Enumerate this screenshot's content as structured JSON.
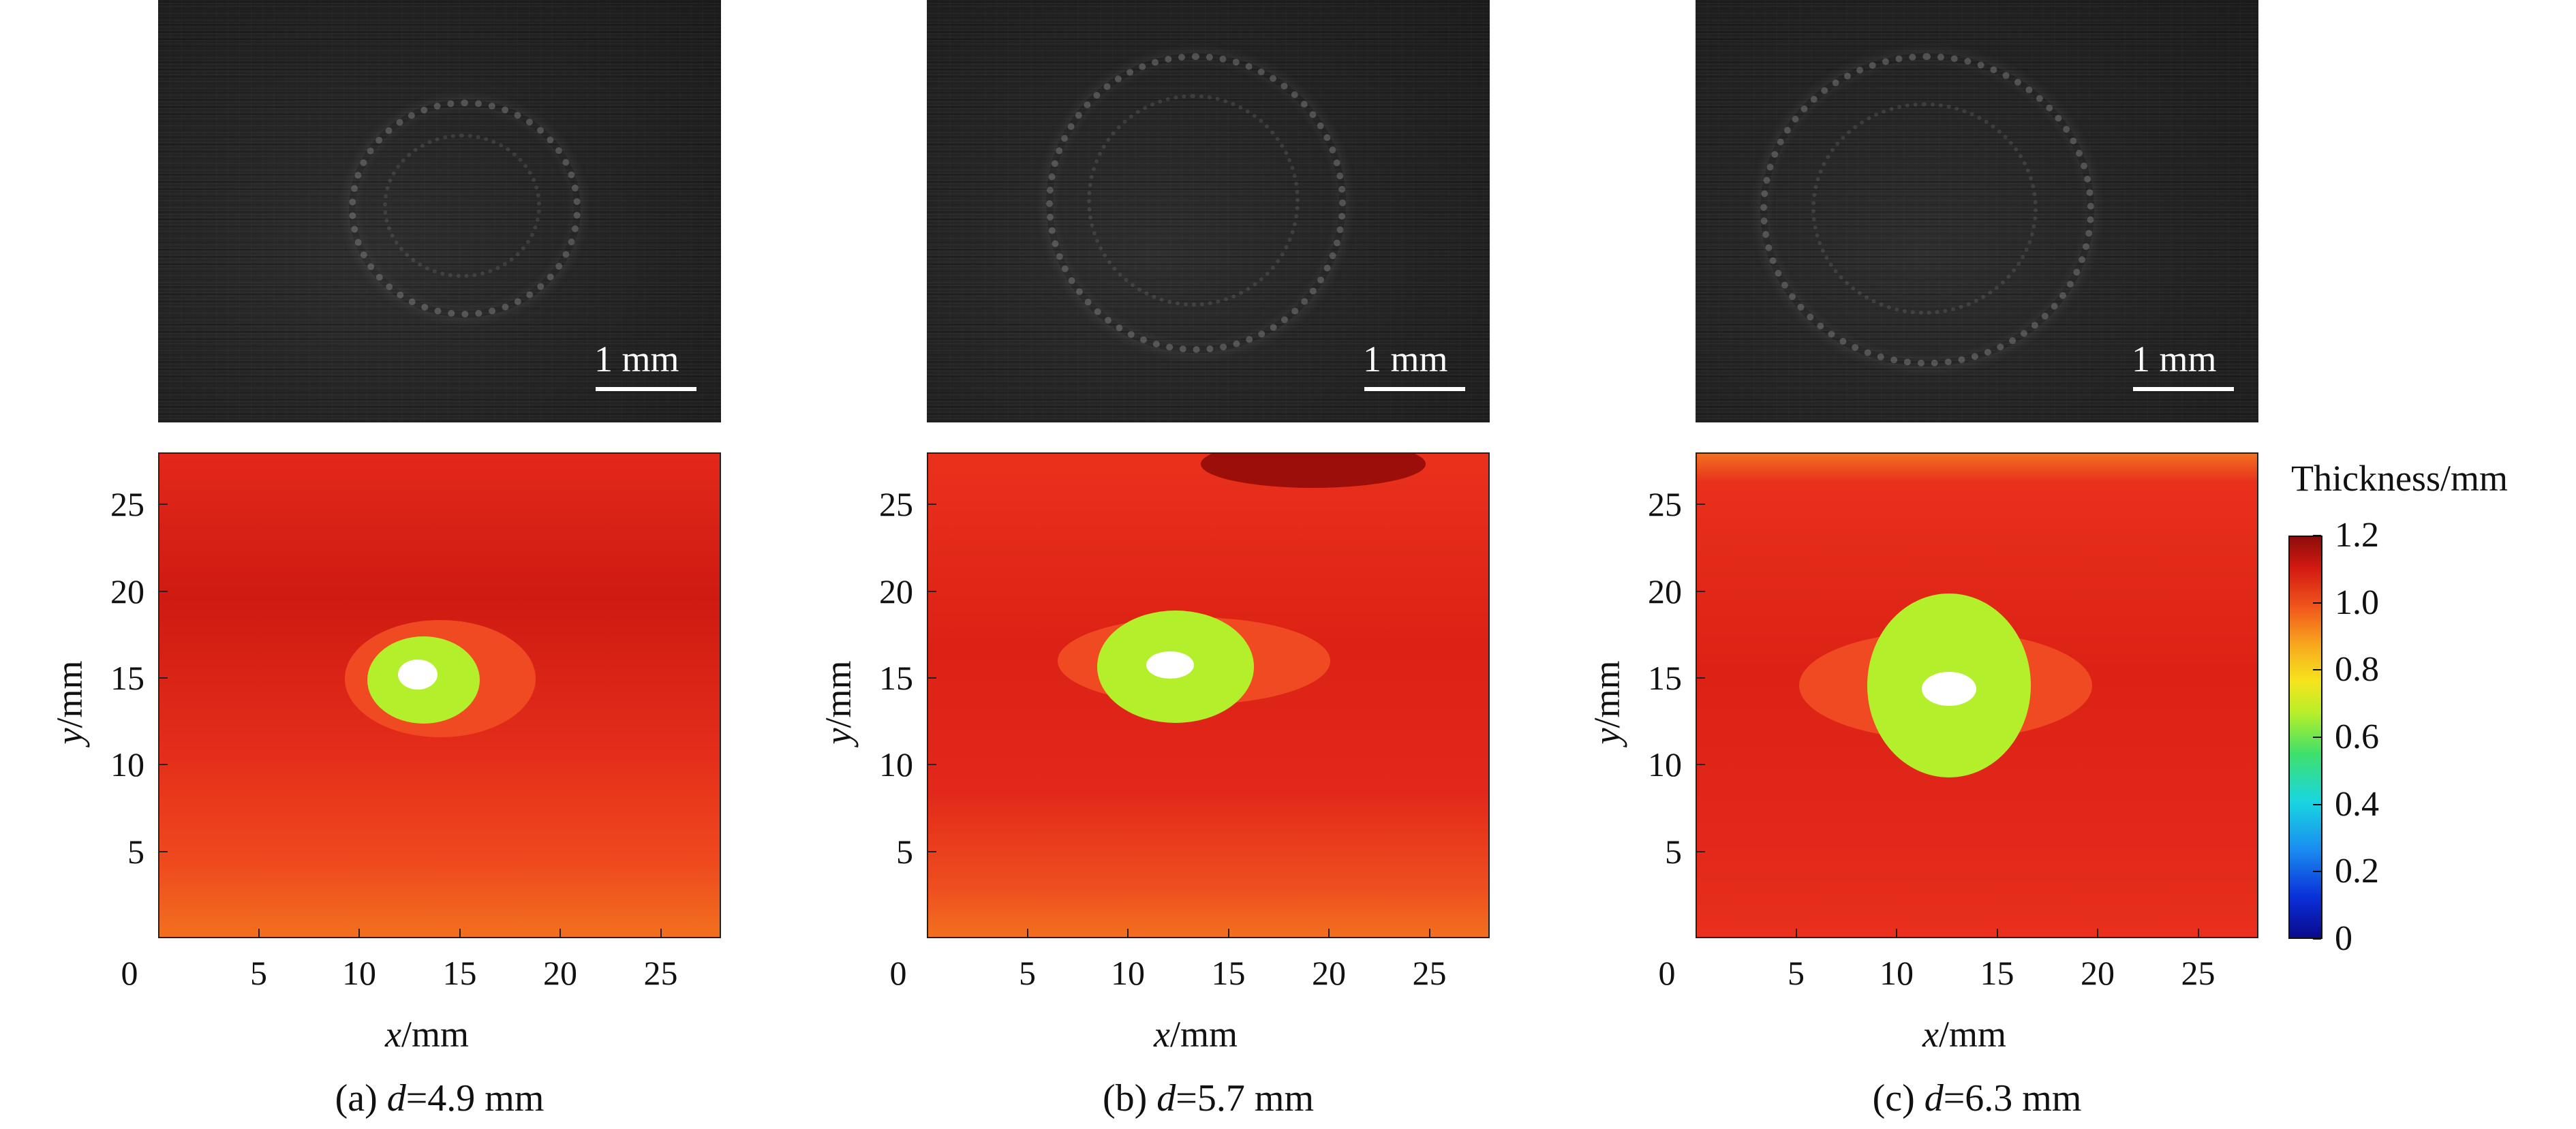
{
  "panels": [
    {
      "scale_label": "1 mm",
      "caption_prefix": "(a) ",
      "caption_var": "d",
      "caption_value": "=4.9 mm",
      "chart_data": {
        "type": "heatmap",
        "xlabel_var": "x",
        "xlabel_unit": "/mm",
        "ylabel_var": "y",
        "ylabel_unit": "/mm",
        "xlim": [
          0,
          28
        ],
        "ylim": [
          0,
          28
        ],
        "xticks": [
          "0",
          "5",
          "10",
          "15",
          "20",
          "25"
        ],
        "yticks": [
          "5",
          "10",
          "15",
          "20",
          "25"
        ],
        "xtick_values": [
          0,
          5,
          10,
          15,
          20,
          25
        ],
        "ytick_values": [
          5,
          10,
          15,
          20,
          25
        ]
      }
    },
    {
      "scale_label": "1 mm",
      "caption_prefix": "(b) ",
      "caption_var": "d",
      "caption_value": "=5.7 mm",
      "chart_data": {
        "type": "heatmap",
        "xlabel_var": "x",
        "xlabel_unit": "/mm",
        "ylabel_var": "y",
        "ylabel_unit": "/mm",
        "xlim": [
          0,
          28
        ],
        "ylim": [
          0,
          28
        ],
        "xticks": [
          "0",
          "5",
          "10",
          "15",
          "20",
          "25"
        ],
        "yticks": [
          "5",
          "10",
          "15",
          "20",
          "25"
        ],
        "xtick_values": [
          0,
          5,
          10,
          15,
          20,
          25
        ],
        "ytick_values": [
          5,
          10,
          15,
          20,
          25
        ]
      }
    },
    {
      "scale_label": "1 mm",
      "caption_prefix": "(c) ",
      "caption_var": "d",
      "caption_value": "=6.3 mm",
      "chart_data": {
        "type": "heatmap",
        "xlabel_var": "x",
        "xlabel_unit": "/mm",
        "ylabel_var": "y",
        "ylabel_unit": "/mm",
        "xlim": [
          0,
          28
        ],
        "ylim": [
          0,
          28
        ],
        "xticks": [
          "0",
          "5",
          "10",
          "15",
          "20",
          "25"
        ],
        "yticks": [
          "5",
          "10",
          "15",
          "20",
          "25"
        ],
        "xtick_values": [
          0,
          5,
          10,
          15,
          20,
          25
        ],
        "ytick_values": [
          5,
          10,
          15,
          20,
          25
        ]
      }
    }
  ],
  "colorbar": {
    "title": "Thickness/mm",
    "range": [
      0,
      1.2
    ],
    "ticks": [
      "1.2",
      "1.0",
      "0.8",
      "0.6",
      "0.4",
      "0.2",
      "0"
    ],
    "tick_values": [
      1.2,
      1.0,
      0.8,
      0.6,
      0.4,
      0.2,
      0
    ],
    "colors": [
      "#0a0a8c",
      "#0a2fd8",
      "#1a8cf0",
      "#19d6e0",
      "#3fe06a",
      "#b7ef2a",
      "#f6e41c",
      "#f8a81e",
      "#f15a1c",
      "#d51a12",
      "#8c0d0a"
    ]
  }
}
